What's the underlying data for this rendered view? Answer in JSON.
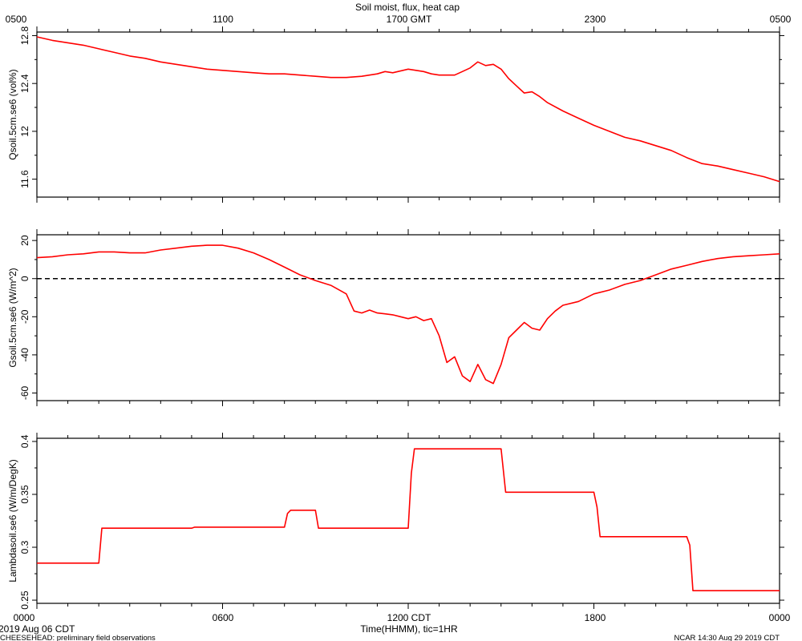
{
  "title": "Soil moist, flux, heat cap",
  "top_axis_ticks": [
    "0500",
    "1100",
    "1700 GMT",
    "2300",
    "0500"
  ],
  "bottom_axis_ticks": [
    "0000",
    "0600",
    "1200 CDT",
    "1800",
    "0000"
  ],
  "xlabel": "Time(HHMM), tic=1HR",
  "date_label": "2019 Aug 06 CDT",
  "footer_left": "CHEESEHEAD: preliminary field observations",
  "footer_right": "NCAR 14:30 Aug 29 2019 CDT",
  "colors": {
    "series": "#ff0000",
    "axis": "#000000",
    "zero_line": "#000000"
  },
  "chart_data": [
    {
      "type": "line",
      "ylabel": "Qsoil.5cm.se6 (vol%)",
      "ylim": [
        11.45,
        12.83
      ],
      "yticks": [
        11.6,
        12.0,
        12.4,
        12.8
      ],
      "xlim": [
        0,
        24
      ],
      "x": [
        0,
        0.5,
        1,
        1.5,
        2,
        2.5,
        3,
        3.5,
        4,
        4.5,
        5,
        5.5,
        6,
        6.5,
        7,
        7.5,
        8,
        8.5,
        9,
        9.5,
        10,
        10.5,
        11,
        11.25,
        11.5,
        12,
        12.5,
        12.75,
        13,
        13.5,
        13.75,
        14,
        14.25,
        14.5,
        14.75,
        15,
        15.25,
        15.5,
        15.75,
        16,
        16.25,
        16.5,
        17,
        17.5,
        18,
        18.5,
        19,
        19.5,
        20,
        20.5,
        21,
        21.5,
        22,
        22.5,
        23,
        23.5,
        24
      ],
      "y": [
        12.79,
        12.76,
        12.74,
        12.72,
        12.69,
        12.66,
        12.63,
        12.61,
        12.58,
        12.56,
        12.54,
        12.52,
        12.51,
        12.5,
        12.49,
        12.48,
        12.48,
        12.47,
        12.46,
        12.45,
        12.45,
        12.46,
        12.48,
        12.5,
        12.49,
        12.52,
        12.5,
        12.48,
        12.47,
        12.47,
        12.5,
        12.53,
        12.58,
        12.55,
        12.56,
        12.52,
        12.44,
        12.38,
        12.32,
        12.33,
        12.29,
        12.24,
        12.17,
        12.11,
        12.05,
        12.0,
        11.95,
        11.92,
        11.88,
        11.84,
        11.78,
        11.73,
        11.71,
        11.68,
        11.65,
        11.62,
        11.58
      ]
    },
    {
      "type": "line",
      "ylabel": "Gsoil.5cm.se6 (W/m^2)",
      "ylim": [
        -64,
        23
      ],
      "yticks": [
        -60,
        -40,
        -20,
        0,
        20
      ],
      "reference_line_y": 0,
      "xlim": [
        0,
        24
      ],
      "x": [
        0,
        0.5,
        1,
        1.5,
        2,
        2.5,
        3,
        3.5,
        4,
        4.5,
        5,
        5.5,
        6,
        6.5,
        7,
        7.5,
        8,
        8.5,
        9,
        9.5,
        10,
        10.25,
        10.5,
        10.75,
        11,
        11.25,
        11.5,
        11.75,
        12,
        12.25,
        12.5,
        12.75,
        13,
        13.25,
        13.5,
        13.75,
        14,
        14.25,
        14.5,
        14.75,
        15,
        15.25,
        15.5,
        15.75,
        16,
        16.25,
        16.5,
        16.75,
        17,
        17.5,
        18,
        18.5,
        19,
        19.5,
        20,
        20.5,
        21,
        21.5,
        22,
        22.5,
        23,
        23.5,
        24
      ],
      "y": [
        11,
        11.5,
        12.5,
        13,
        14,
        14,
        13.5,
        13.5,
        15,
        16,
        17,
        17.5,
        17.5,
        16,
        13.5,
        10,
        6,
        2,
        -1,
        -3.5,
        -8,
        -17,
        -18,
        -16.5,
        -18,
        -18.5,
        -19,
        -20,
        -21,
        -20,
        -22,
        -21,
        -30,
        -44,
        -41,
        -51,
        -54,
        -45,
        -53,
        -55,
        -45,
        -31,
        -27,
        -23,
        -26,
        -27,
        -21,
        -17,
        -14,
        -12,
        -8,
        -6,
        -3,
        -1,
        2,
        5,
        7,
        9,
        10.5,
        11.5,
        12,
        12.5,
        13
      ]
    },
    {
      "type": "line",
      "ylabel": "Lambdasoil.se6 (W/m/DegK)",
      "ylim": [
        0.247,
        0.403
      ],
      "yticks": [
        0.25,
        0.3,
        0.35,
        0.4
      ],
      "xlim": [
        0,
        24
      ],
      "x": [
        0,
        2,
        2.1,
        5,
        5.1,
        8,
        8.1,
        8.2,
        9,
        9.1,
        12,
        12.1,
        12.2,
        15,
        15.15,
        18,
        18.1,
        18.2,
        21,
        21.1,
        21.2,
        24
      ],
      "y": [
        0.285,
        0.285,
        0.318,
        0.318,
        0.319,
        0.319,
        0.332,
        0.335,
        0.335,
        0.318,
        0.318,
        0.37,
        0.393,
        0.393,
        0.352,
        0.352,
        0.338,
        0.31,
        0.31,
        0.302,
        0.259,
        0.259
      ]
    }
  ]
}
